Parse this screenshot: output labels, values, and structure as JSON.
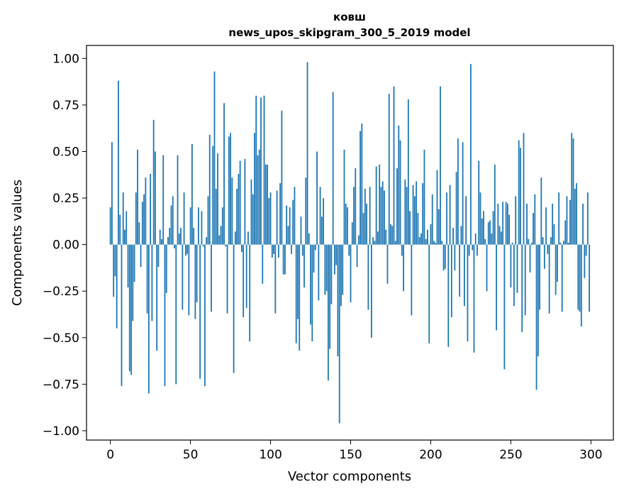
{
  "chart_data": {
    "type": "bar",
    "title": "ковш",
    "subtitle": "news_upos_skipgram_300_5_2019 model",
    "xlabel": "Vector components",
    "ylabel": "Components values",
    "xlim": [
      -14.9,
      314
    ],
    "ylim": [
      -1.05,
      1.07
    ],
    "xticks": [
      0,
      50,
      100,
      150,
      200,
      250,
      300
    ],
    "xtick_labels": [
      "0",
      "50",
      "100",
      "150",
      "200",
      "250",
      "300"
    ],
    "yticks": [
      1.0,
      0.75,
      0.5,
      0.25,
      0.0,
      -0.25,
      -0.5,
      -0.75,
      -1.0
    ],
    "ytick_labels": [
      "1.00",
      "0.75",
      "0.50",
      "0.25",
      "0.00",
      "−0.25",
      "−0.50",
      "−0.75",
      "−1.00"
    ],
    "bar_color": "#1f77b4",
    "values": [
      0.2,
      0.55,
      -0.28,
      -0.17,
      -0.45,
      0.88,
      0.16,
      -0.76,
      0.28,
      0.08,
      0.18,
      -0.23,
      -0.68,
      -0.7,
      -0.41,
      -0.2,
      0.28,
      0.51,
      0.12,
      -0.12,
      0.23,
      0.27,
      0.36,
      -0.37,
      -0.8,
      0.38,
      -0.41,
      0.67,
      0.5,
      -0.57,
      -0.12,
      0.08,
      0.03,
      0.48,
      -0.76,
      -0.26,
      0.04,
      0.09,
      0.21,
      0.26,
      -0.02,
      -0.75,
      0.48,
      0.06,
      0.09,
      -0.35,
      0.28,
      -0.06,
      -0.05,
      -0.38,
      0.2,
      0.54,
      0.09,
      -0.4,
      -0.31,
      0.2,
      -0.72,
      0.18,
      -0.01,
      -0.76,
      0.04,
      0.26,
      0.59,
      -0.36,
      0.53,
      0.93,
      0.3,
      0.49,
      0.05,
      0.1,
      0.2,
      0.76,
      -0.01,
      -0.37,
      0.58,
      0.6,
      0.36,
      -0.69,
      0.07,
      0.3,
      0.38,
      0.45,
      -0.04,
      -0.39,
      0.46,
      -0.34,
      0.07,
      -0.52,
      0.35,
      0.27,
      0.6,
      0.8,
      0.48,
      0.51,
      0.79,
      -0.21,
      0.8,
      0.43,
      0.43,
      0.25,
      0.28,
      -0.07,
      -0.05,
      -0.37,
      0.29,
      -0.07,
      0.33,
      0.72,
      -0.16,
      -0.16,
      0.21,
      0.1,
      0.2,
      -0.05,
      0.24,
      0.31,
      -0.53,
      -0.4,
      -0.57,
      0.15,
      -0.06,
      -0.23,
      0.36,
      0.98,
      0.06,
      -0.43,
      -0.52,
      -0.15,
      -0.03,
      0.5,
      -0.3,
      0.31,
      0.15,
      0.25,
      -0.27,
      -0.25,
      -0.73,
      -0.56,
      -0.32,
      0.82,
      -0.16,
      -0.11,
      -0.6,
      -0.96,
      -0.33,
      -0.27,
      0.51,
      0.22,
      0.2,
      -0.06,
      -0.31,
      0.12,
      0.31,
      0.41,
      -0.12,
      0.05,
      0.61,
      0.65,
      0.17,
      0.3,
      0.22,
      -0.35,
      0.31,
      -0.5,
      0.04,
      0.02,
      0.42,
      0.07,
      0.43,
      0.31,
      0.34,
      0.29,
      0.08,
      -0.21,
      0.81,
      0.11,
      0.1,
      0.85,
      0.02,
      0.41,
      0.64,
      0.56,
      -0.06,
      -0.25,
      0.35,
      0.31,
      0.78,
      0.18,
      -0.38,
      0.32,
      0.26,
      0.34,
      0.17,
      0.04,
      0.06,
      0.33,
      0.51,
      0.03,
      0.08,
      -0.53,
      0.11,
      0.27,
      0.02,
      0.01,
      0.4,
      0.19,
      0.85,
      0.02,
      -0.14,
      -0.13,
      0.28,
      -0.55,
      0.32,
      -0.39,
      0.09,
      -0.14,
      0.39,
      0.57,
      -0.28,
      0.1,
      0.55,
      -0.33,
      0.26,
      -0.52,
      -0.06,
      0.97,
      -0.03,
      -0.58,
      0.06,
      -0.06,
      0.45,
      0.28,
      0.14,
      0.18,
      0.03,
      -0.25,
      0.12,
      0.13,
      0.06,
      0.18,
      0.43,
      -0.46,
      0.22,
      0.1,
      0.07,
      0.23,
      -0.67,
      0.23,
      0.22,
      0.16,
      -0.23,
      0.01,
      -0.33,
      0.26,
      -0.26,
      0.56,
      0.52,
      -0.47,
      0.6,
      -0.38,
      0.22,
      0.03,
      -0.15,
      0.01,
      0.17,
      0.27,
      -0.78,
      -0.6,
      -0.35,
      0.36,
      0.04,
      -0.13,
      0.2,
      -0.05,
      -0.37,
      0.04,
      0.22,
      0.11,
      -0.27,
      -0.2,
      0.28,
      0.01,
      -0.36,
      0.02,
      0.13,
      0.26,
      0.01,
      0.24,
      0.6,
      0.57,
      0.3,
      0.33,
      -0.35,
      -0.36,
      -0.44,
      0.22,
      -0.18,
      -0.06,
      0.28,
      -0.36
    ]
  }
}
